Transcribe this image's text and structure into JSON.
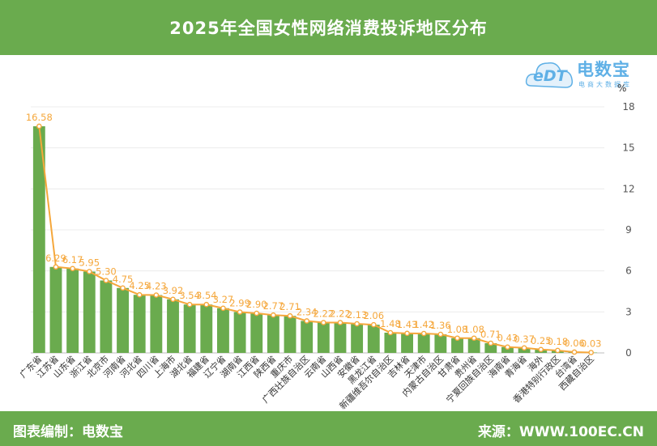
{
  "title": "2025年全国女性网络消费投诉地区分布",
  "unit": "%",
  "logo": {
    "main": "电数宝",
    "sub": "电商大数据库",
    "edt": "eDT"
  },
  "footer": {
    "left": "图表编制：电数宝",
    "right": "来源：WWW.100EC.CN"
  },
  "colors": {
    "header": "#6aab4e",
    "bar": "#6aab4e",
    "line": "#f5a73b",
    "logo_blue": "#5fb0e6"
  },
  "chart_data": {
    "type": "bar",
    "categories": [
      "广东省",
      "江苏省",
      "山东省",
      "浙江省",
      "北京市",
      "河南省",
      "河北省",
      "四川省",
      "上海市",
      "湖北省",
      "福建省",
      "辽宁省",
      "湖南省",
      "江西省",
      "陕西省",
      "重庆市",
      "广西壮族自治区",
      "云南省",
      "山西省",
      "安徽省",
      "黑龙江省",
      "新疆维吾尔自治区",
      "吉林省",
      "天津市",
      "内蒙古自治区",
      "甘肃省",
      "贵州省",
      "宁夏回族自治区",
      "海南省",
      "青海省",
      "海外",
      "香港特别行政区",
      "台湾省",
      "西藏自治区"
    ],
    "series": [
      {
        "type": "bar",
        "values": [
          16.58,
          6.29,
          6.17,
          5.95,
          5.3,
          4.75,
          4.25,
          4.23,
          3.92,
          3.54,
          3.54,
          3.27,
          2.99,
          2.9,
          2.77,
          2.71,
          2.34,
          2.22,
          2.22,
          2.13,
          2.06,
          1.48,
          1.43,
          1.42,
          1.36,
          1.08,
          1.08,
          0.71,
          0.43,
          0.37,
          0.25,
          0.18,
          0.06,
          0.03
        ]
      },
      {
        "type": "line",
        "values": [
          16.58,
          6.29,
          6.17,
          5.95,
          5.3,
          4.75,
          4.25,
          4.23,
          3.92,
          3.54,
          3.54,
          3.27,
          2.99,
          2.9,
          2.77,
          2.71,
          2.34,
          2.22,
          2.22,
          2.13,
          2.06,
          1.48,
          1.43,
          1.42,
          1.36,
          1.08,
          1.08,
          0.71,
          0.43,
          0.37,
          0.25,
          0.18,
          0.06,
          0.03
        ]
      }
    ],
    "data_labels": [
      "16.58",
      "6.29",
      "6.17",
      "5.95",
      "5.30",
      "4.75",
      "4.25",
      "4.23",
      "3.92",
      "3.54",
      "3.54",
      "3.27",
      "2.99",
      "2.90",
      "2.77",
      "2.71",
      "2.34",
      "2.22",
      "2.22",
      "2.13",
      "2.06",
      "1.48",
      "1.43",
      "1.42",
      "1.36",
      "1.08",
      "1.08",
      "0.71",
      "0.43",
      "0.37",
      "0.25",
      "0.18",
      "0.06",
      "0.03"
    ],
    "yticks": [
      "0",
      "3",
      "6",
      "9",
      "12",
      "15",
      "18"
    ],
    "ylim": [
      0,
      18
    ],
    "y_axis_side": "right",
    "grid": true
  }
}
